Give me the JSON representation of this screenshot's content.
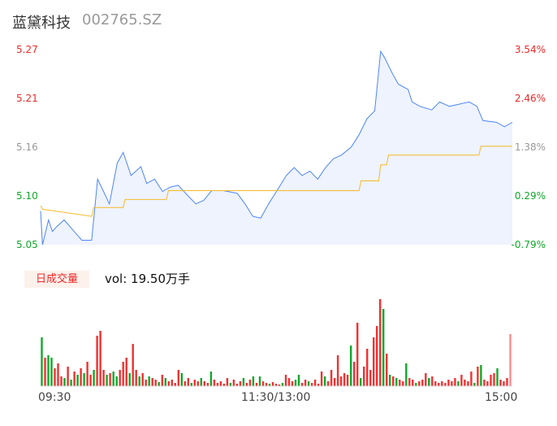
{
  "header": {
    "name": "蓝黛科技",
    "code": "002765.SZ"
  },
  "volume_panel": {
    "tab_label": "日成交量",
    "vol_label": "vol: 19.50万手"
  },
  "colors": {
    "up": "#f23030",
    "down": "#10a829",
    "price_line": "#4f86f7",
    "avg_line": "#f5b92a",
    "area": "#eef3fd"
  },
  "chart_data": {
    "type": "line",
    "y_left_ticks": [
      "5.27",
      "5.21",
      "5.16",
      "5.10",
      "5.05"
    ],
    "y_right_ticks": [
      "3.54%",
      "2.46%",
      "1.38%",
      "0.29%",
      "-0.79%"
    ],
    "x_ticks": [
      "09:30",
      "11:30/13:00",
      "15:00"
    ],
    "ylim": [
      5.05,
      5.27
    ],
    "price": [
      [
        0,
        5.088
      ],
      [
        1,
        5.05
      ],
      [
        4,
        5.078
      ],
      [
        6,
        5.065
      ],
      [
        8,
        5.07
      ],
      [
        12,
        5.078
      ],
      [
        17,
        5.065
      ],
      [
        21,
        5.055
      ],
      [
        26,
        5.055
      ],
      [
        29,
        5.124
      ],
      [
        32,
        5.11
      ],
      [
        35,
        5.096
      ],
      [
        39,
        5.142
      ],
      [
        42,
        5.154
      ],
      [
        46,
        5.128
      ],
      [
        51,
        5.138
      ],
      [
        54,
        5.119
      ],
      [
        58,
        5.124
      ],
      [
        62,
        5.11
      ],
      [
        66,
        5.115
      ],
      [
        70,
        5.117
      ],
      [
        75,
        5.105
      ],
      [
        79,
        5.096
      ],
      [
        83,
        5.1
      ],
      [
        87,
        5.111
      ],
      [
        93,
        5.111
      ],
      [
        100,
        5.108
      ],
      [
        104,
        5.096
      ],
      [
        108,
        5.082
      ],
      [
        112,
        5.08
      ],
      [
        116,
        5.096
      ],
      [
        120,
        5.11
      ],
      [
        125,
        5.128
      ],
      [
        129,
        5.137
      ],
      [
        133,
        5.128
      ],
      [
        137,
        5.133
      ],
      [
        141,
        5.124
      ],
      [
        145,
        5.137
      ],
      [
        149,
        5.147
      ],
      [
        153,
        5.151
      ],
      [
        158,
        5.16
      ],
      [
        162,
        5.174
      ],
      [
        166,
        5.192
      ],
      [
        170,
        5.201
      ],
      [
        173,
        5.268
      ],
      [
        175,
        5.261
      ],
      [
        179,
        5.243
      ],
      [
        182,
        5.231
      ],
      [
        187,
        5.225
      ],
      [
        189,
        5.211
      ],
      [
        193,
        5.206
      ],
      [
        199,
        5.202
      ],
      [
        203,
        5.211
      ],
      [
        208,
        5.206
      ],
      [
        212,
        5.208
      ],
      [
        218,
        5.211
      ],
      [
        222,
        5.206
      ],
      [
        225,
        5.19
      ],
      [
        232,
        5.188
      ],
      [
        236,
        5.183
      ],
      [
        240,
        5.188
      ]
    ],
    "avg": [
      [
        0,
        5.094
      ],
      [
        1,
        5.09
      ],
      [
        26,
        5.082
      ],
      [
        27,
        5.092
      ],
      [
        42,
        5.092
      ],
      [
        43,
        5.101
      ],
      [
        64,
        5.101
      ],
      [
        65,
        5.111
      ],
      [
        162,
        5.111
      ],
      [
        163,
        5.122
      ],
      [
        172,
        5.122
      ],
      [
        173,
        5.14
      ],
      [
        176,
        5.14
      ],
      [
        177,
        5.151
      ],
      [
        223,
        5.151
      ],
      [
        224,
        5.161
      ],
      [
        240,
        5.161
      ]
    ],
    "volume": [
      [
        60,
        "d"
      ],
      [
        35,
        "u"
      ],
      [
        38,
        "d"
      ],
      [
        35,
        "d"
      ],
      [
        22,
        "u"
      ],
      [
        28,
        "u"
      ],
      [
        12,
        "u"
      ],
      [
        10,
        "d"
      ],
      [
        24,
        "u"
      ],
      [
        8,
        "d"
      ],
      [
        18,
        "u"
      ],
      [
        14,
        "d"
      ],
      [
        22,
        "u"
      ],
      [
        16,
        "d"
      ],
      [
        30,
        "u"
      ],
      [
        14,
        "u"
      ],
      [
        20,
        "d"
      ],
      [
        62,
        "u"
      ],
      [
        68,
        "u"
      ],
      [
        20,
        "u"
      ],
      [
        14,
        "d"
      ],
      [
        16,
        "u"
      ],
      [
        18,
        "d"
      ],
      [
        12,
        "d"
      ],
      [
        20,
        "u"
      ],
      [
        30,
        "u"
      ],
      [
        35,
        "u"
      ],
      [
        16,
        "d"
      ],
      [
        52,
        "u"
      ],
      [
        20,
        "u"
      ],
      [
        12,
        "d"
      ],
      [
        16,
        "u"
      ],
      [
        8,
        "u"
      ],
      [
        12,
        "d"
      ],
      [
        10,
        "u"
      ],
      [
        8,
        "u"
      ],
      [
        5,
        "d"
      ],
      [
        14,
        "u"
      ],
      [
        10,
        "d"
      ],
      [
        6,
        "u"
      ],
      [
        8,
        "u"
      ],
      [
        4,
        "u"
      ],
      [
        20,
        "u"
      ],
      [
        16,
        "d"
      ],
      [
        6,
        "u"
      ],
      [
        10,
        "u"
      ],
      [
        4,
        "d"
      ],
      [
        8,
        "u"
      ],
      [
        6,
        "u"
      ],
      [
        10,
        "d"
      ],
      [
        6,
        "u"
      ],
      [
        4,
        "u"
      ],
      [
        18,
        "d"
      ],
      [
        8,
        "u"
      ],
      [
        4,
        "u"
      ],
      [
        6,
        "u"
      ],
      [
        3,
        "u"
      ],
      [
        10,
        "u"
      ],
      [
        4,
        "d"
      ],
      [
        8,
        "u"
      ],
      [
        3,
        "u"
      ],
      [
        6,
        "u"
      ],
      [
        10,
        "d"
      ],
      [
        4,
        "u"
      ],
      [
        8,
        "u"
      ],
      [
        12,
        "d"
      ],
      [
        4,
        "u"
      ],
      [
        12,
        "d"
      ],
      [
        6,
        "u"
      ],
      [
        4,
        "u"
      ],
      [
        3,
        "d"
      ],
      [
        5,
        "u"
      ],
      [
        3,
        "u"
      ],
      [
        2,
        "u"
      ],
      [
        4,
        "d"
      ],
      [
        14,
        "u"
      ],
      [
        10,
        "u"
      ],
      [
        6,
        "u"
      ],
      [
        8,
        "d"
      ],
      [
        14,
        "d"
      ],
      [
        4,
        "u"
      ],
      [
        8,
        "u"
      ],
      [
        6,
        "d"
      ],
      [
        4,
        "u"
      ],
      [
        8,
        "u"
      ],
      [
        3,
        "u"
      ],
      [
        18,
        "u"
      ],
      [
        12,
        "d"
      ],
      [
        6,
        "u"
      ],
      [
        20,
        "u"
      ],
      [
        10,
        "u"
      ],
      [
        38,
        "u"
      ],
      [
        12,
        "u"
      ],
      [
        16,
        "u"
      ],
      [
        14,
        "u"
      ],
      [
        50,
        "d"
      ],
      [
        30,
        "u"
      ],
      [
        78,
        "u"
      ],
      [
        10,
        "d"
      ],
      [
        24,
        "u"
      ],
      [
        46,
        "u"
      ],
      [
        20,
        "u"
      ],
      [
        60,
        "u"
      ],
      [
        74,
        "u"
      ],
      [
        107,
        "u"
      ],
      [
        95,
        "d"
      ],
      [
        40,
        "u"
      ],
      [
        14,
        "d"
      ],
      [
        12,
        "u"
      ],
      [
        10,
        "d"
      ],
      [
        8,
        "u"
      ],
      [
        6,
        "u"
      ],
      [
        28,
        "d"
      ],
      [
        10,
        "u"
      ],
      [
        8,
        "u"
      ],
      [
        4,
        "d"
      ],
      [
        6,
        "u"
      ],
      [
        8,
        "u"
      ],
      [
        16,
        "u"
      ],
      [
        10,
        "d"
      ],
      [
        12,
        "u"
      ],
      [
        6,
        "u"
      ],
      [
        4,
        "u"
      ],
      [
        6,
        "u"
      ],
      [
        4,
        "u"
      ],
      [
        8,
        "u"
      ],
      [
        6,
        "u"
      ],
      [
        10,
        "u"
      ],
      [
        6,
        "d"
      ],
      [
        14,
        "u"
      ],
      [
        8,
        "u"
      ],
      [
        6,
        "u"
      ],
      [
        18,
        "u"
      ],
      [
        4,
        "d"
      ],
      [
        24,
        "u"
      ],
      [
        26,
        "d"
      ],
      [
        8,
        "u"
      ],
      [
        6,
        "u"
      ],
      [
        14,
        "u"
      ],
      [
        16,
        "u"
      ],
      [
        22,
        "d"
      ],
      [
        8,
        "u"
      ],
      [
        6,
        "u"
      ],
      [
        10,
        "u"
      ],
      [
        64,
        "u"
      ]
    ]
  }
}
